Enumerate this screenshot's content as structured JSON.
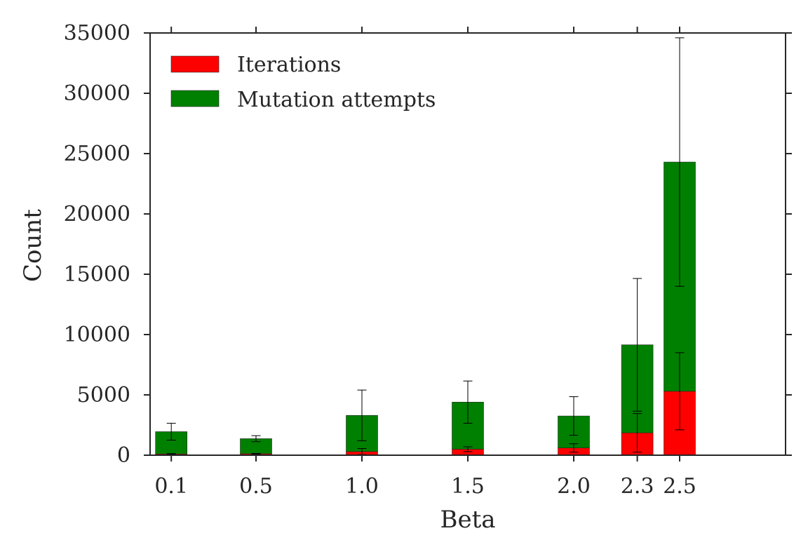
{
  "chart_data": {
    "type": "bar",
    "stacked": true,
    "title": "",
    "xlabel": "Beta",
    "ylabel": "Count",
    "categories": [
      "0.1",
      "0.5",
      "1.0",
      "1.5",
      "2.0",
      "2.3",
      "2.5"
    ],
    "x": [
      0.1,
      0.5,
      1.0,
      1.5,
      2.0,
      2.3,
      2.5
    ],
    "xlim": [
      0.0,
      3.0
    ],
    "ylim": [
      0,
      35000
    ],
    "y_ticks": [
      "0",
      "5000",
      "10000",
      "15000",
      "20000",
      "25000",
      "30000",
      "35000"
    ],
    "y_tick_values": [
      0,
      5000,
      10000,
      15000,
      20000,
      25000,
      30000,
      35000
    ],
    "grid": false,
    "legend_position": "top-left",
    "series": [
      {
        "name": "Iterations",
        "color": "#ff0000",
        "values": [
          100,
          120,
          300,
          500,
          600,
          1850,
          5300
        ],
        "error": [
          30,
          30,
          250,
          200,
          350,
          1600,
          3200
        ]
      },
      {
        "name": "Mutation attempts",
        "color": "#008000",
        "values": [
          1850,
          1250,
          3000,
          3900,
          2650,
          7300,
          19000
        ],
        "error": [
          700,
          250,
          2100,
          1750,
          1600,
          5500,
          10300
        ]
      }
    ]
  }
}
